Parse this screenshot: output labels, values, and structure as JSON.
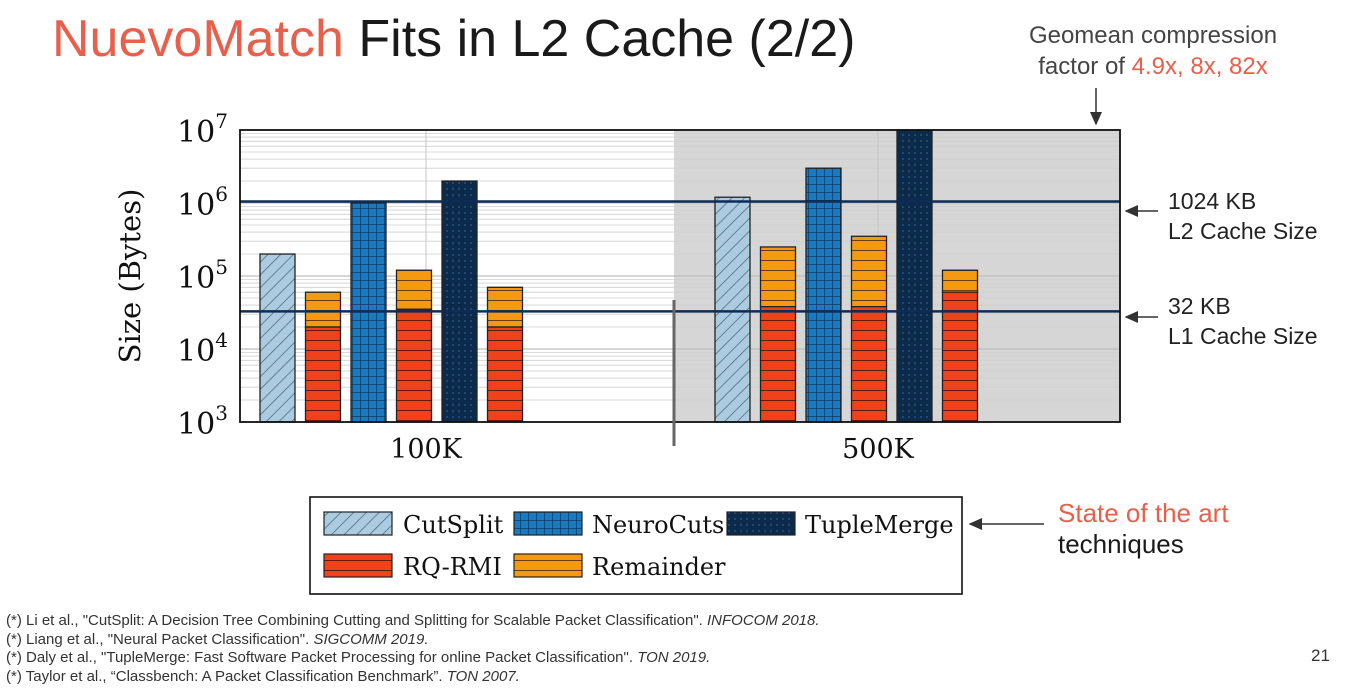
{
  "slide": {
    "title_accent": "NuevoMatch",
    "title_rest": "Fits in L2 Cache (2/2)",
    "note_line1": "Geomean compression",
    "note_line2_prefix": "factor of ",
    "note_line2_values": "4.9x, 8x, 82x",
    "l2_size": "1024 KB",
    "l2_label": "L2 Cache Size",
    "l1_size": "32 KB",
    "l1_label": "L1 Cache Size",
    "legend_note_accent": "State of the art",
    "legend_note_rest": "techniques",
    "page_number": "21",
    "footnotes": [
      {
        "mark": "(*)",
        "text": " Li et al., \"CutSplit: A Decision Tree Combining Cutting and Splitting for Scalable Packet Classification\". ",
        "venue": "INFOCOM 2018."
      },
      {
        "mark": "(*)",
        "text": " Liang et al., \"Neural Packet Classification\". ",
        "venue": "SIGCOMM 2019."
      },
      {
        "mark": "(*)",
        "text": " Daly et al., \"TupleMerge: Fast Software Packet Processing for online Packet Classification\". ",
        "venue": "TON 2019."
      },
      {
        "mark": "(*)",
        "text": " Taylor et al., “Classbench: A Packet Classification Benchmark”. ",
        "venue": "TON 2007."
      }
    ]
  },
  "chart_data": {
    "type": "bar",
    "scale": "log10",
    "ylabel": "Size (Bytes)",
    "ylim": [
      1000,
      10000000
    ],
    "yticks": [
      {
        "value": 1000,
        "base": "10",
        "exp": "3"
      },
      {
        "value": 10000,
        "base": "10",
        "exp": "4"
      },
      {
        "value": 100000,
        "base": "10",
        "exp": "5"
      },
      {
        "value": 1000000,
        "base": "10",
        "exp": "6"
      },
      {
        "value": 10000000,
        "base": "10",
        "exp": "7"
      }
    ],
    "categories": [
      "100K",
      "500K"
    ],
    "highlighted_category": "500K",
    "reference_lines": [
      {
        "name": "L2 cache",
        "value": 1048576
      },
      {
        "name": "L1 cache",
        "value": 32768
      }
    ],
    "series": [
      {
        "name": "CutSplit",
        "pattern": "hatch",
        "fill": "#aacbe0",
        "stack": false,
        "values": [
          200000,
          1200000
        ]
      },
      {
        "name": "NeuroCuts",
        "pattern": "grid",
        "fill": "#1a7ac0",
        "stack": false,
        "values": [
          1000000,
          3000000
        ]
      },
      {
        "name": "TupleMerge",
        "pattern": "dots",
        "fill": "#0c2a4a",
        "stack": false,
        "values": [
          2000000,
          10000000
        ]
      }
    ],
    "stacked_series": [
      {
        "name": "RQ-RMI",
        "pattern": "hlines",
        "fill": "#f0421a",
        "values": [
          [
            20000,
            35000,
            20000
          ],
          [
            38000,
            38000,
            60000
          ]
        ]
      },
      {
        "name": "Remainder",
        "pattern": "hlines",
        "fill": "#f59a10",
        "totals": [
          [
            60000,
            120000,
            70000
          ],
          [
            250000,
            350000,
            120000
          ]
        ]
      }
    ],
    "legend": [
      "CutSplit",
      "NeuroCuts",
      "TupleMerge",
      "RQ-RMI",
      "Remainder"
    ]
  }
}
